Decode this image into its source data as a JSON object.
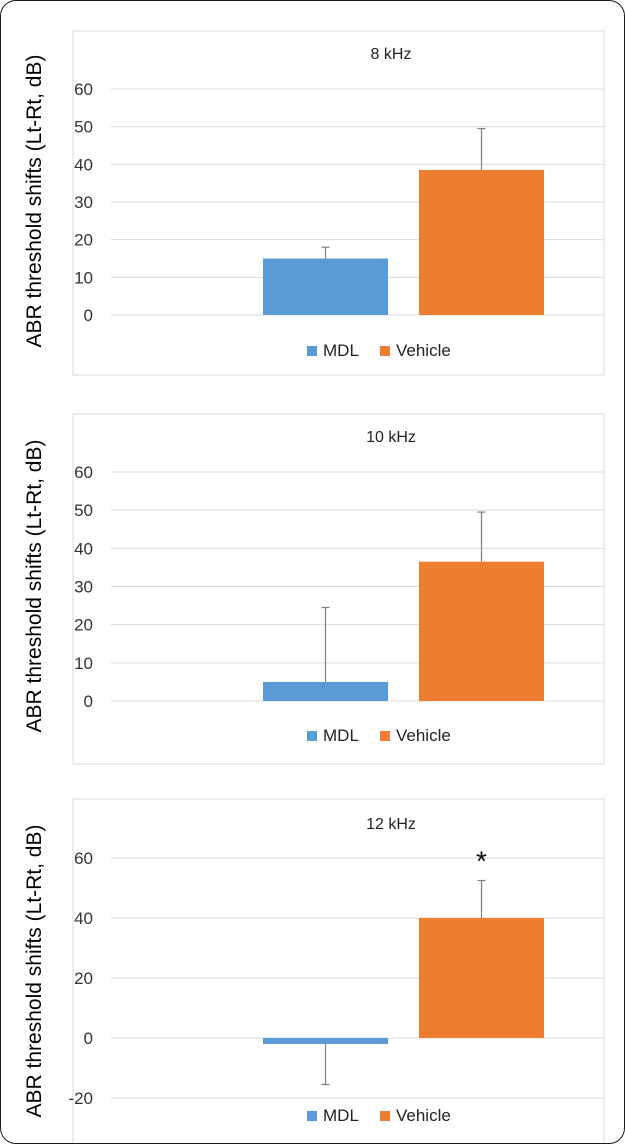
{
  "chart_data": [
    {
      "type": "bar",
      "title": "8 kHz",
      "ylabel": "ABR threshold shifts (Lt-Rt, dB)",
      "categories": [
        ""
      ],
      "series": [
        {
          "name": "MDL",
          "color": "#5b9bd5",
          "values": [
            15
          ],
          "error": [
            3
          ]
        },
        {
          "name": "Vehicle",
          "color": "#ed7d31",
          "values": [
            38.5
          ],
          "error": [
            11
          ]
        }
      ],
      "yticks": [
        0,
        10,
        20,
        30,
        40,
        50,
        60
      ],
      "ylim": [
        0,
        60
      ],
      "grid": true,
      "legend": "bottom",
      "annotations": []
    },
    {
      "type": "bar",
      "title": "10 kHz",
      "ylabel": "ABR threshold shifts (Lt-Rt, dB)",
      "categories": [
        ""
      ],
      "series": [
        {
          "name": "MDL",
          "color": "#5b9bd5",
          "values": [
            5
          ],
          "error": [
            19.5
          ]
        },
        {
          "name": "Vehicle",
          "color": "#ed7d31",
          "values": [
            36.5
          ],
          "error": [
            13
          ]
        }
      ],
      "yticks": [
        0,
        10,
        20,
        30,
        40,
        50,
        60
      ],
      "ylim": [
        0,
        60
      ],
      "grid": true,
      "legend": "bottom",
      "annotations": []
    },
    {
      "type": "bar",
      "title": "12 kHz",
      "ylabel": "ABR threshold shifts (Lt-Rt, dB)",
      "categories": [
        ""
      ],
      "series": [
        {
          "name": "MDL",
          "color": "#5b9bd5",
          "values": [
            -2
          ],
          "error": [
            13.5
          ]
        },
        {
          "name": "Vehicle",
          "color": "#ed7d31",
          "values": [
            40
          ],
          "error": [
            12.5
          ]
        }
      ],
      "yticks": [
        -20,
        0,
        20,
        40,
        60
      ],
      "ylim": [
        -20,
        60
      ],
      "grid": true,
      "legend": "bottom",
      "annotations": [
        {
          "text": "*",
          "series": "Vehicle"
        }
      ]
    }
  ]
}
